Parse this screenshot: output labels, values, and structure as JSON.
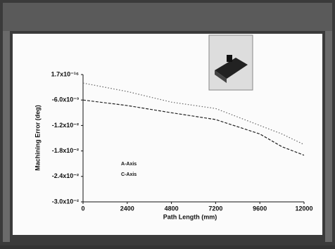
{
  "chart_data": {
    "type": "line",
    "xlabel": "Path Length (mm)",
    "ylabel": "Machining Error (deg)",
    "x": [
      0,
      2400,
      4800,
      7200,
      9600,
      10800,
      12000
    ],
    "series": [
      {
        "name": "A-Axis",
        "color": "#666666",
        "values": [
          -0.002,
          -0.004,
          -0.0065,
          -0.008,
          -0.012,
          -0.014,
          -0.0165
        ]
      },
      {
        "name": "C-Axis",
        "color": "#222222",
        "values": [
          -0.006,
          -0.0073,
          -0.009,
          -0.0106,
          -0.014,
          -0.017,
          -0.019
        ]
      }
    ],
    "xlim": [
      0,
      12000
    ],
    "xticks": [
      0,
      2400,
      4800,
      7200,
      9600,
      12000
    ],
    "ylim": [
      -0.03,
      1.7e-16
    ],
    "yticks": [
      {
        "value": 1.7e-16,
        "label": "1.7x10⁻¹⁶"
      },
      {
        "value": -0.006,
        "label": "-6.0x10⁻³"
      },
      {
        "value": -0.012,
        "label": "-1.2x10⁻²"
      },
      {
        "value": -0.018,
        "label": "-1.8x10⁻²"
      },
      {
        "value": -0.024,
        "label": "-2.4x10⁻²"
      },
      {
        "value": -0.03,
        "label": "-3.0x10⁻²"
      }
    ]
  }
}
